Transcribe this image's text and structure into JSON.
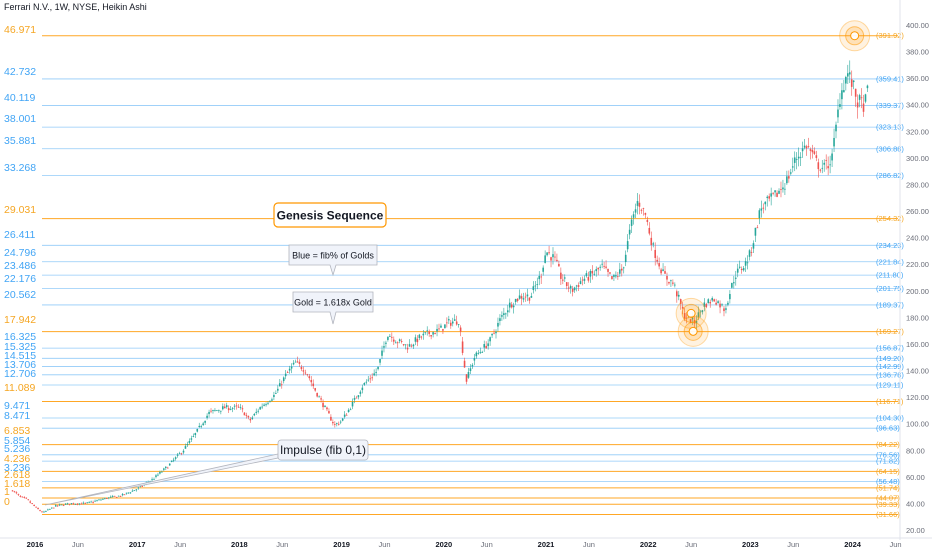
{
  "header": {
    "title": "Ferrari N.V., 1W, NYSE, Heikin Ashi"
  },
  "chart_data": {
    "type": "candlestick",
    "symbol": "Ferrari N.V.",
    "interval": "1W",
    "exchange": "NYSE",
    "chart_style": "Heikin Ashi",
    "ylim": [
      20,
      410
    ],
    "y_ticks": [
      20,
      40,
      60,
      80,
      100,
      120,
      140,
      160,
      180,
      200,
      220,
      240,
      260,
      280,
      300,
      320,
      340,
      360,
      380,
      400
    ],
    "x_ticks": [
      {
        "label": "2016",
        "t": 2016.0,
        "bold": true
      },
      {
        "label": "Jun",
        "t": 2016.42,
        "bold": false
      },
      {
        "label": "2017",
        "t": 2017.0,
        "bold": true
      },
      {
        "label": "Jun",
        "t": 2017.42,
        "bold": false
      },
      {
        "label": "2018",
        "t": 2018.0,
        "bold": true
      },
      {
        "label": "Jun",
        "t": 2018.42,
        "bold": false
      },
      {
        "label": "2019",
        "t": 2019.0,
        "bold": true
      },
      {
        "label": "Jun",
        "t": 2019.42,
        "bold": false
      },
      {
        "label": "2020",
        "t": 2020.0,
        "bold": true
      },
      {
        "label": "Jun",
        "t": 2020.42,
        "bold": false
      },
      {
        "label": "2021",
        "t": 2021.0,
        "bold": true
      },
      {
        "label": "Jun",
        "t": 2021.42,
        "bold": false
      },
      {
        "label": "2022",
        "t": 2022.0,
        "bold": true
      },
      {
        "label": "Jun",
        "t": 2022.42,
        "bold": false
      },
      {
        "label": "2023",
        "t": 2023.0,
        "bold": true
      },
      {
        "label": "Jun",
        "t": 2023.42,
        "bold": false
      },
      {
        "label": "2024",
        "t": 2024.0,
        "bold": true
      },
      {
        "label": "Jun",
        "t": 2024.42,
        "bold": false
      }
    ],
    "price_path": [
      [
        2015.78,
        50
      ],
      [
        2015.85,
        45
      ],
      [
        2015.92,
        43
      ],
      [
        2016.02,
        36
      ],
      [
        2016.08,
        33
      ],
      [
        2016.2,
        38
      ],
      [
        2016.35,
        40
      ],
      [
        2016.5,
        40
      ],
      [
        2016.7,
        44
      ],
      [
        2016.85,
        46
      ],
      [
        2017.0,
        51
      ],
      [
        2017.15,
        58
      ],
      [
        2017.3,
        68
      ],
      [
        2017.45,
        80
      ],
      [
        2017.55,
        90
      ],
      [
        2017.7,
        108
      ],
      [
        2017.85,
        112
      ],
      [
        2018.0,
        112
      ],
      [
        2018.05,
        108
      ],
      [
        2018.1,
        102
      ],
      [
        2018.2,
        112
      ],
      [
        2018.35,
        122
      ],
      [
        2018.45,
        136
      ],
      [
        2018.55,
        146
      ],
      [
        2018.65,
        140
      ],
      [
        2018.75,
        124
      ],
      [
        2018.85,
        110
      ],
      [
        2018.93,
        99
      ],
      [
        2019.0,
        102
      ],
      [
        2019.1,
        114
      ],
      [
        2019.2,
        128
      ],
      [
        2019.35,
        140
      ],
      [
        2019.45,
        168
      ],
      [
        2019.55,
        162
      ],
      [
        2019.65,
        158
      ],
      [
        2019.75,
        164
      ],
      [
        2019.85,
        168
      ],
      [
        2019.95,
        170
      ],
      [
        2020.05,
        176
      ],
      [
        2020.15,
        178
      ],
      [
        2020.22,
        132
      ],
      [
        2020.3,
        150
      ],
      [
        2020.45,
        162
      ],
      [
        2020.55,
        178
      ],
      [
        2020.65,
        190
      ],
      [
        2020.75,
        196
      ],
      [
        2020.85,
        196
      ],
      [
        2020.95,
        212
      ],
      [
        2021.0,
        230
      ],
      [
        2021.08,
        224
      ],
      [
        2021.15,
        210
      ],
      [
        2021.25,
        200
      ],
      [
        2021.35,
        208
      ],
      [
        2021.45,
        212
      ],
      [
        2021.55,
        218
      ],
      [
        2021.65,
        208
      ],
      [
        2021.75,
        216
      ],
      [
        2021.83,
        248
      ],
      [
        2021.9,
        268
      ],
      [
        2021.97,
        258
      ],
      [
        2022.05,
        232
      ],
      [
        2022.15,
        212
      ],
      [
        2022.25,
        205
      ],
      [
        2022.35,
        182
      ],
      [
        2022.45,
        176
      ],
      [
        2022.55,
        190
      ],
      [
        2022.65,
        194
      ],
      [
        2022.75,
        186
      ],
      [
        2022.85,
        212
      ],
      [
        2022.95,
        220
      ],
      [
        2023.0,
        228
      ],
      [
        2023.1,
        262
      ],
      [
        2023.25,
        272
      ],
      [
        2023.35,
        282
      ],
      [
        2023.45,
        300
      ],
      [
        2023.55,
        310
      ],
      [
        2023.65,
        296
      ],
      [
        2023.72,
        292
      ],
      [
        2023.8,
        300
      ],
      [
        2023.88,
        348
      ],
      [
        2023.95,
        364
      ],
      [
        2024.0,
        355
      ],
      [
        2024.05,
        342
      ],
      [
        2024.12,
        340
      ],
      [
        2024.15,
        352
      ]
    ],
    "fib_levels": [
      {
        "label": "46.971",
        "value": 391.92,
        "value_label": "(391.92)",
        "kind": "gold"
      },
      {
        "label": "42.732",
        "value": 359.41,
        "value_label": "(359.41)",
        "kind": "blue"
      },
      {
        "label": "40.119",
        "value": 339.37,
        "value_label": "(339.37)",
        "kind": "blue"
      },
      {
        "label": "38.001",
        "value": 323.13,
        "value_label": "(323.13)",
        "kind": "blue"
      },
      {
        "label": "35.881",
        "value": 306.88,
        "value_label": "(306.88)",
        "kind": "blue"
      },
      {
        "label": "33.268",
        "value": 286.82,
        "value_label": "(286.82)",
        "kind": "blue"
      },
      {
        "label": "29.031",
        "value": 254.32,
        "value_label": "(254.32)",
        "kind": "gold"
      },
      {
        "label": "26.411",
        "value": 234.23,
        "value_label": "(234.23)",
        "kind": "blue"
      },
      {
        "label": "24.796",
        "value": 221.84,
        "value_label": "(221.84)",
        "kind": "blue"
      },
      {
        "label": "23.486",
        "value": 211.8,
        "value_label": "(211.80)",
        "kind": "blue"
      },
      {
        "label": "22.176",
        "value": 201.75,
        "value_label": "(201.75)",
        "kind": "blue"
      },
      {
        "label": "20.562",
        "value": 189.37,
        "value_label": "(189.37)",
        "kind": "blue"
      },
      {
        "label": "17.942",
        "value": 169.27,
        "value_label": "(169.27)",
        "kind": "gold"
      },
      {
        "label": "16.325",
        "value": 156.87,
        "value_label": "(156.87)",
        "kind": "blue"
      },
      {
        "label": "15.325",
        "value": 149.2,
        "value_label": "(149.20)",
        "kind": "blue"
      },
      {
        "label": "14.515",
        "value": 142.99,
        "value_label": "(142.99)",
        "kind": "blue"
      },
      {
        "label": "13.706",
        "value": 136.78,
        "value_label": "(136.78)",
        "kind": "blue"
      },
      {
        "label": "12.706",
        "value": 129.11,
        "value_label": "(129.11)",
        "kind": "blue"
      },
      {
        "label": "11.089",
        "value": 116.71,
        "value_label": "(116.71)",
        "kind": "gold"
      },
      {
        "label": "9.471",
        "value": 104.3,
        "value_label": "(104.30)",
        "kind": "blue"
      },
      {
        "label": "8.471",
        "value": 96.63,
        "value_label": "(96.63)",
        "kind": "blue"
      },
      {
        "label": "6.853",
        "value": 84.22,
        "value_label": "(84.22)",
        "kind": "gold"
      },
      {
        "label": "5.854",
        "value": 76.56,
        "value_label": "(76.56)",
        "kind": "blue"
      },
      {
        "label": "5.236",
        "value": 71.82,
        "value_label": "(71.82)",
        "kind": "blue"
      },
      {
        "label": "4.236",
        "value": 64.15,
        "value_label": "(64.15)",
        "kind": "gold"
      },
      {
        "label": "3.236",
        "value": 56.48,
        "value_label": "(56.48)",
        "kind": "blue"
      },
      {
        "label": "2.618",
        "value": 51.74,
        "value_label": "(51.74)",
        "kind": "gold"
      },
      {
        "label": "1.618",
        "value": 44.07,
        "value_label": "(44.07)",
        "kind": "gold"
      },
      {
        "label": "1",
        "value": 39.33,
        "value_label": "(39.33)",
        "kind": "gold"
      },
      {
        "label": "0",
        "value": 31.66,
        "value_label": "(31.66)",
        "kind": "gold"
      }
    ],
    "annotations": [
      {
        "text": "Genesis Sequence",
        "style": "boxed-gold",
        "anchor": [
          2020.4,
          254.32
        ]
      },
      {
        "text": "Blue = fib% of Golds",
        "style": "callout",
        "anchor": [
          2018.95,
          216
        ]
      },
      {
        "text": "Gold = 1.618x Gold",
        "style": "callout",
        "anchor": [
          2018.95,
          189.37
        ]
      },
      {
        "text": "Impulse (fib 0,1)",
        "style": "callout-pointer",
        "anchor": [
          2018.85,
          78
        ]
      }
    ],
    "highlights": [
      {
        "t": 2024.02,
        "price": 391.92,
        "kind": "top-circle"
      },
      {
        "t": 2022.42,
        "price": 183,
        "kind": "low-circle"
      },
      {
        "t": 2022.44,
        "price": 169.5,
        "kind": "low-circle"
      }
    ],
    "colors": {
      "gold": "#ff9800",
      "blue": "#64b5f6",
      "up": "#26a69a",
      "down": "#ef5350",
      "label_gold": "#f5a623",
      "label_blue": "#42a5f5"
    }
  }
}
